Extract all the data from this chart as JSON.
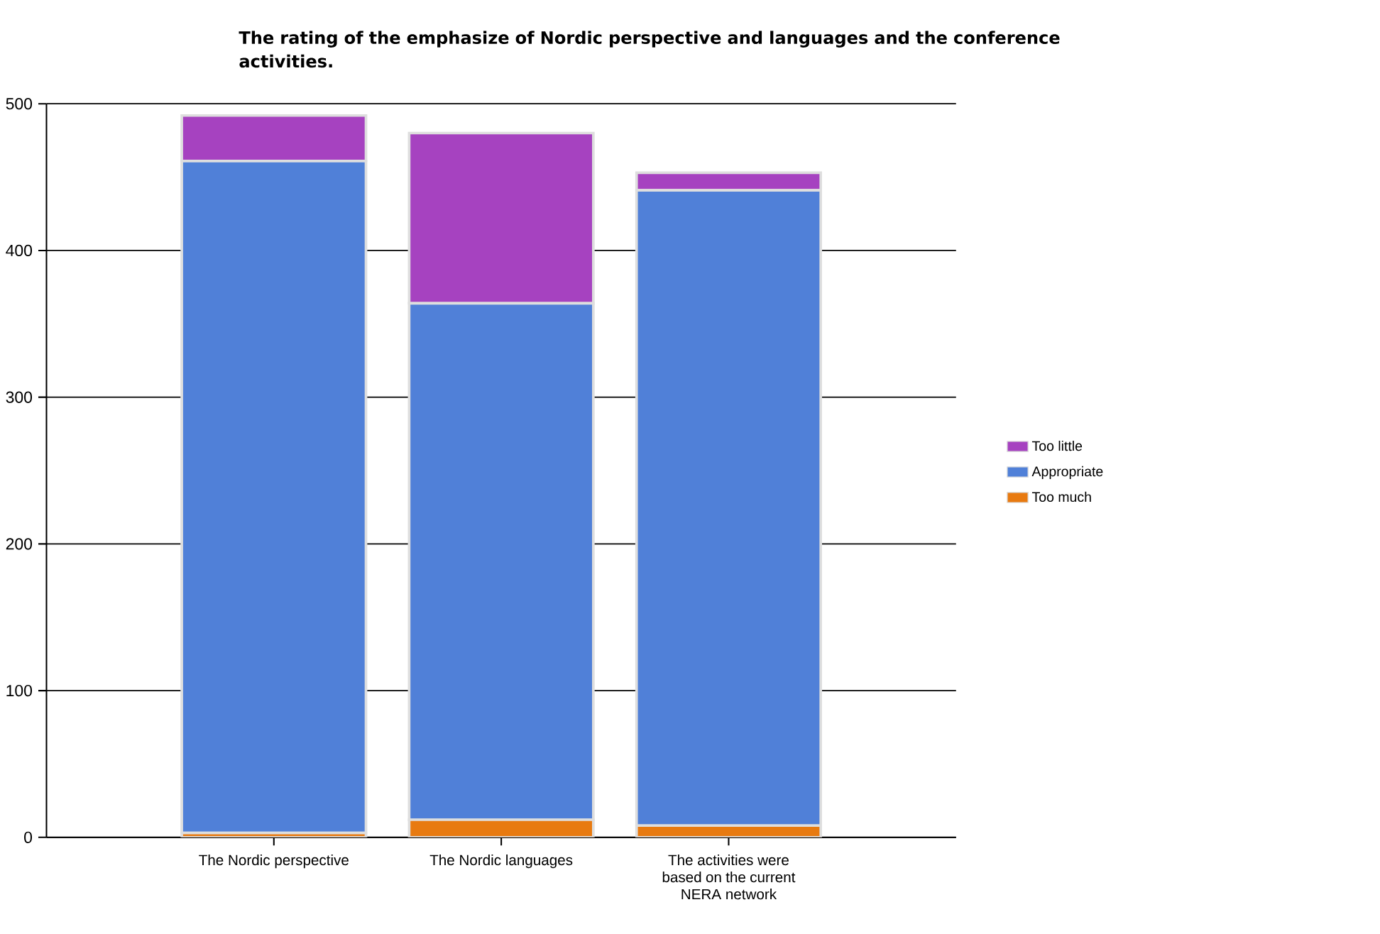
{
  "chart_data": {
    "type": "bar",
    "title": "The rating of the emphasize of Nordic perspective and languages and the conference activities.",
    "categories": [
      "The Nordic perspective",
      "The Nordic languages",
      "The activities were based on the current NERA network"
    ],
    "stacked": true,
    "series": [
      {
        "name": "Too much",
        "color": "#e87a10",
        "values": [
          3,
          12,
          8
        ]
      },
      {
        "name": "Appropriate",
        "color": "#5080d8",
        "values": [
          458,
          352,
          433
        ]
      },
      {
        "name": "Too little",
        "color": "#a642c0",
        "values": [
          31,
          116,
          12
        ]
      }
    ],
    "ylim": [
      0,
      500
    ],
    "yticks": [
      0,
      100,
      200,
      300,
      400,
      500
    ],
    "grid": "y",
    "legend": "right"
  }
}
